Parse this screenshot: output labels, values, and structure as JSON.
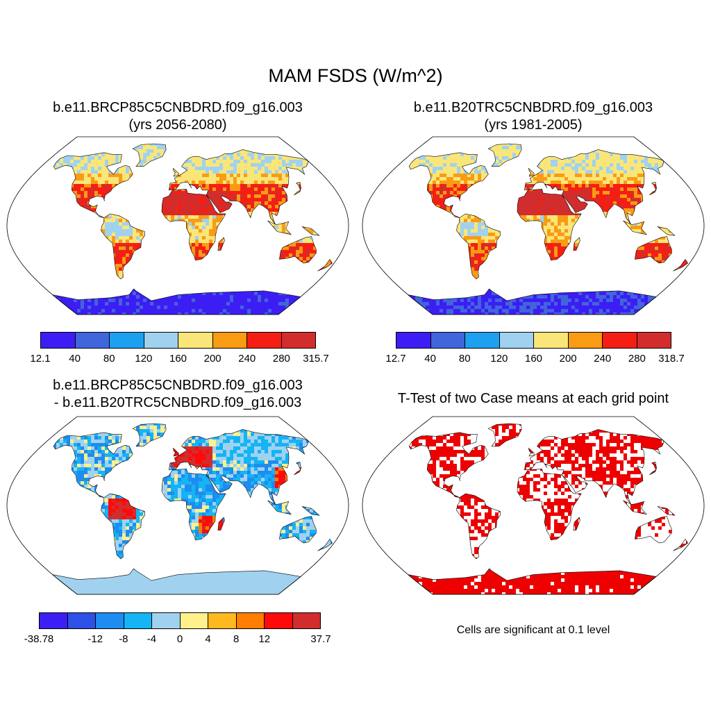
{
  "figure": {
    "title": "MAM FSDS (W/m^2)",
    "colors": {
      "ocean": "#ffffff",
      "outline": "#000000"
    }
  },
  "panels": [
    {
      "title_line1": "b.e11.BRCP85C5CNBDRD.f09_g16.003",
      "title_line2": "(yrs 2056-2080)",
      "colorbar": {
        "colors": [
          "#3c1ef5",
          "#4165dc",
          "#1ea0f0",
          "#a0d2f0",
          "#fae678",
          "#fa9b14",
          "#f51e14",
          "#d22d2d"
        ],
        "labels": [
          "12.1",
          "40",
          "80",
          "120",
          "160",
          "200",
          "240",
          "280",
          "315.7"
        ]
      }
    },
    {
      "title_line1": "b.e11.B20TRC5CNBDRD.f09_g16.003",
      "title_line2": "(yrs 1981-2005)",
      "colorbar": {
        "colors": [
          "#3c1ef5",
          "#4165dc",
          "#1ea0f0",
          "#a0d2f0",
          "#fae678",
          "#fa9b14",
          "#f51e14",
          "#d22d2d"
        ],
        "labels": [
          "12.7",
          "40",
          "80",
          "120",
          "160",
          "200",
          "240",
          "280",
          "318.7"
        ]
      }
    },
    {
      "title_line1": "b.e11.BRCP85C5CNBDRD.f09_g16.003",
      "title_line2": "- b.e11.B20TRC5CNBDRD.f09_g16.003",
      "colorbar": {
        "colors": [
          "#3c1ef5",
          "#2d50e6",
          "#1e8cf0",
          "#14b4f5",
          "#a0d2f0",
          "#fff08c",
          "#ffb91e",
          "#ff7d00",
          "#ff0a0a",
          "#d22d2d"
        ],
        "labels": [
          "-38.78",
          "",
          "-12",
          "-8",
          "-4",
          "0",
          "4",
          "8",
          "12",
          "",
          "37.7"
        ]
      }
    },
    {
      "title_line1": "T-Test of two Case means at each grid point",
      "note": "Cells are significant at 0.1 level",
      "significance_color": "#ee0000"
    }
  ]
}
